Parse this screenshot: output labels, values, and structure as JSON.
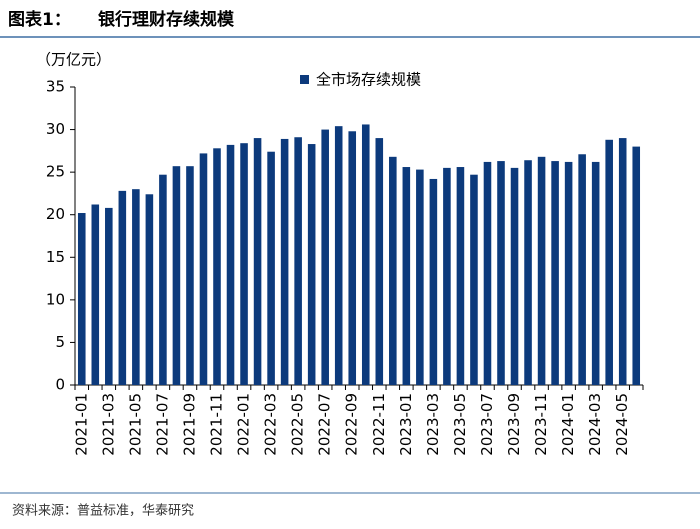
{
  "chart_data": {
    "type": "bar",
    "figure_label": "图表1：",
    "title": "银行理财存续规模",
    "y_label": "（万亿元）",
    "source": "资料来源：普益标准，华泰研究",
    "categories": [
      "2021-01",
      null,
      "2021-03",
      null,
      "2021-05",
      null,
      "2021-07",
      null,
      "2021-09",
      null,
      "2021-11",
      null,
      "2022-01",
      null,
      "2022-03",
      null,
      "2022-05",
      null,
      "2022-07",
      null,
      "2022-09",
      null,
      "2022-11",
      null,
      "2023-01",
      null,
      "2023-03",
      null,
      "2023-05",
      null,
      "2023-07",
      null,
      "2023-09",
      null,
      "2023-11",
      null,
      "2024-01",
      null,
      "2024-03",
      null,
      "2024-05",
      null
    ],
    "series": [
      {
        "name": "全市场存续规模",
        "color": "#0c3a7c",
        "values": [
          20.2,
          21.2,
          20.8,
          22.8,
          23.0,
          22.4,
          24.7,
          25.7,
          25.7,
          27.2,
          27.8,
          28.2,
          28.4,
          29.0,
          27.4,
          28.9,
          29.1,
          28.3,
          30.0,
          30.4,
          29.8,
          30.6,
          29.0,
          26.8,
          25.6,
          25.3,
          24.2,
          25.5,
          25.6,
          24.7,
          26.2,
          26.3,
          25.5,
          26.4,
          26.8,
          26.3,
          26.2,
          27.1,
          26.2,
          28.8,
          29.0,
          28.0
        ]
      }
    ],
    "ylim": [
      0,
      35
    ],
    "yticks": [
      0,
      5,
      10,
      15,
      20,
      25,
      30,
      35
    ],
    "grid": false,
    "legend": "top"
  }
}
